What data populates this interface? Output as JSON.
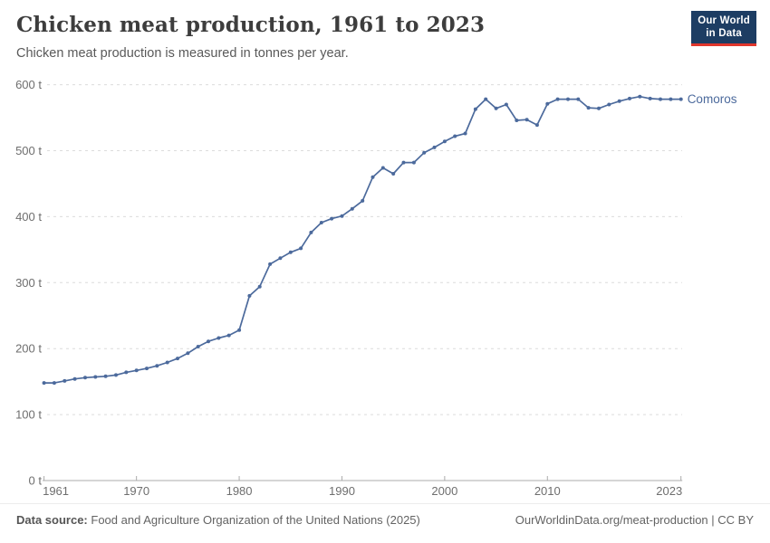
{
  "header": {
    "title": "Chicken meat production, 1961 to 2023",
    "subtitle": "Chicken meat production is measured in tonnes per year."
  },
  "logo": {
    "line1": "Our World",
    "line2": "in Data",
    "bg": "#1d3d63",
    "accent": "#e0362c"
  },
  "chart_data": {
    "type": "line",
    "title": "Chicken meat production, 1961 to 2023",
    "unit": "t",
    "xlabel": "",
    "ylabel": "",
    "xlim": [
      1961,
      2023
    ],
    "ylim": [
      0,
      600
    ],
    "grid": "horizontal-dashed",
    "legend_position": "end-of-line",
    "x_ticks": [
      1961,
      1970,
      1980,
      1990,
      2000,
      2010,
      2023
    ],
    "x_tick_labels": [
      "1961",
      "1970",
      "1980",
      "1990",
      "2000",
      "2010",
      "2023"
    ],
    "y_ticks": [
      0,
      100,
      200,
      300,
      400,
      500,
      600
    ],
    "y_tick_labels": [
      "0 t",
      "100 t",
      "200 t",
      "300 t",
      "400 t",
      "500 t",
      "600 t"
    ],
    "series": [
      {
        "name": "Comoros",
        "color": "#4c6a9c",
        "x": [
          1961,
          1962,
          1963,
          1964,
          1965,
          1966,
          1967,
          1968,
          1969,
          1970,
          1971,
          1972,
          1973,
          1974,
          1975,
          1976,
          1977,
          1978,
          1979,
          1980,
          1981,
          1982,
          1983,
          1984,
          1985,
          1986,
          1987,
          1988,
          1989,
          1990,
          1991,
          1992,
          1993,
          1994,
          1995,
          1996,
          1997,
          1998,
          1999,
          2000,
          2001,
          2002,
          2003,
          2004,
          2005,
          2006,
          2007,
          2008,
          2009,
          2010,
          2011,
          2012,
          2013,
          2014,
          2015,
          2016,
          2017,
          2018,
          2019,
          2020,
          2021,
          2022,
          2023
        ],
        "values": [
          148,
          148,
          151,
          154,
          156,
          157,
          158,
          160,
          164,
          167,
          170,
          174,
          179,
          185,
          193,
          203,
          211,
          216,
          220,
          228,
          280,
          294,
          328,
          337,
          346,
          352,
          376,
          391,
          397,
          401,
          412,
          424,
          460,
          474,
          465,
          482,
          482,
          497,
          505,
          514,
          522,
          526,
          563,
          578,
          564,
          570,
          546,
          547,
          539,
          571,
          578,
          578,
          578,
          565,
          564,
          570,
          575,
          579,
          582,
          579,
          578,
          578,
          578
        ]
      }
    ]
  },
  "footer": {
    "source_label": "Data source:",
    "source_text": "Food and Agriculture Organization of the United Nations (2025)",
    "credit": "OurWorldinData.org/meat-production | CC BY"
  },
  "colors": {
    "line": "#4c6a9c",
    "grid": "#dcdcdc",
    "axis": "#ababab",
    "tick_text": "#6e6e6e"
  }
}
